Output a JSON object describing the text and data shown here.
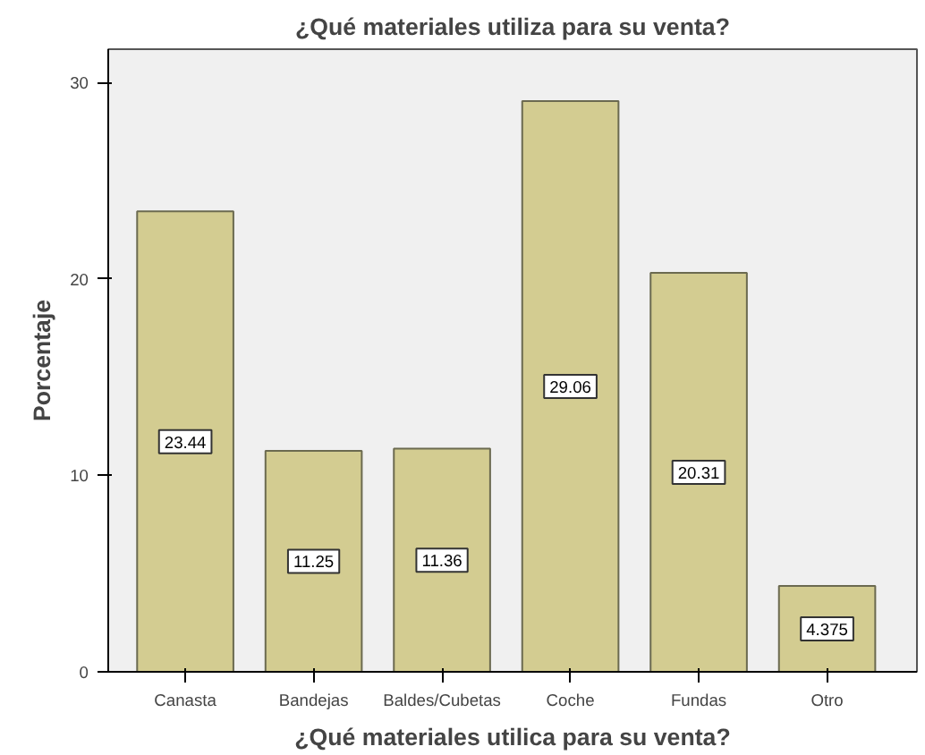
{
  "chart_data": {
    "type": "bar",
    "title": "¿Qué materiales utiliza para su venta?",
    "xlabel": "¿Qué materiales utilica para su venta?",
    "ylabel": "Porcentaje",
    "categories": [
      "Canasta",
      "Bandejas",
      "Baldes/Cubetas",
      "Coche",
      "Fundas",
      "Otro"
    ],
    "values": [
      23.44,
      11.25,
      11.36,
      29.06,
      20.31,
      4.375
    ],
    "color": "#d3cc91",
    "value_labels": [
      "23.44",
      "11.25",
      "11.36",
      "29.06",
      "20.31",
      "4.375"
    ],
    "ylim": [
      0,
      31.7
    ],
    "yticks": [
      0,
      10,
      20,
      30
    ],
    "grid": false
  }
}
